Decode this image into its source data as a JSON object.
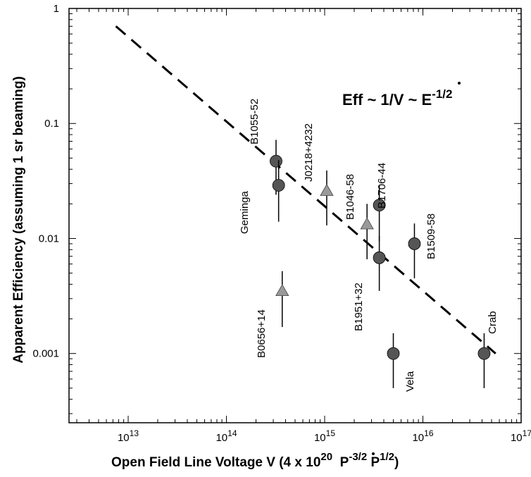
{
  "chart_data": {
    "type": "scatter",
    "title": "",
    "xlabel": "Open Field Line Voltage V  (4 x 10",
    "xlabel_exp": "20",
    "xlabel_tail_pdot": "P",
    "xlabel_tail_pdot_exp": "-3/2",
    "xlabel_tail_p": "P",
    "xlabel_tail_p_exp": "1/2",
    "xlabel_close": ")",
    "ylabel": "Apparent Efficiency (assuming 1 sr beaming)",
    "x_scale": "log",
    "y_scale": "log",
    "xlim": [
      2500000000000.0,
      1e+17
    ],
    "ylim": [
      0.00025,
      1
    ],
    "grid": false,
    "x_ticks": [
      {
        "value": 10000000000000.0,
        "base": "10",
        "exp": "13"
      },
      {
        "value": 100000000000000.0,
        "base": "10",
        "exp": "14"
      },
      {
        "value": 1000000000000000.0,
        "base": "10",
        "exp": "15"
      },
      {
        "value": 1e+16,
        "base": "10",
        "exp": "16"
      },
      {
        "value": 1e+17,
        "base": "10",
        "exp": "17"
      }
    ],
    "y_ticks": [
      {
        "value": 1,
        "label": "1"
      },
      {
        "value": 0.1,
        "label": "0.1"
      },
      {
        "value": 0.01,
        "label": "0.01"
      },
      {
        "value": 0.001,
        "label": "0.001"
      }
    ],
    "fit_line": {
      "style": "dashed",
      "points": [
        [
          7500000000000.0,
          0.7
        ],
        [
          5.5e+16,
          0.001
        ]
      ]
    },
    "annotation": {
      "text": "Eff ~ 1/V ~ E",
      "exp": "-1/2"
    },
    "series": [
      {
        "marker": "circle",
        "color": "#555555",
        "points": [
          {
            "name": "B1055-52",
            "x": 320000000000000.0,
            "y": 0.047,
            "y_low": 0.024,
            "y_high": 0.072
          },
          {
            "name": "Geminga",
            "x": 340000000000000.0,
            "y": 0.029,
            "y_low": 0.014,
            "y_high": 0.048
          },
          {
            "name": "B1706-44",
            "x": 3600000000000000.0,
            "y": 0.0195,
            "y_low": 0.0095,
            "y_high": 0.029
          },
          {
            "name": "B1951+32",
            "x": 3600000000000000.0,
            "y": 0.0068,
            "y_low": 0.0035,
            "y_high": 0.0105
          },
          {
            "name": "B1509-58",
            "x": 8200000000000000.0,
            "y": 0.009,
            "y_low": 0.0045,
            "y_high": 0.0135
          },
          {
            "name": "Vela",
            "x": 5000000000000000.0,
            "y": 0.001,
            "y_low": 0.0005,
            "y_high": 0.0015
          },
          {
            "name": "Crab",
            "x": 4.2e+16,
            "y": 0.001,
            "y_low": 0.0005,
            "y_high": 0.0015
          }
        ]
      },
      {
        "marker": "triangle",
        "color": "#9a9a9a",
        "points": [
          {
            "name": "J0218+4232",
            "x": 1050000000000000.0,
            "y": 0.026,
            "y_low": 0.013,
            "y_high": 0.039
          },
          {
            "name": "B1046-58",
            "x": 2700000000000000.0,
            "y": 0.0133,
            "y_low": 0.0066,
            "y_high": 0.02
          },
          {
            "name": "B0656+14",
            "x": 370000000000000.0,
            "y": 0.0035,
            "y_low": 0.0017,
            "y_high": 0.0052
          }
        ]
      }
    ]
  }
}
